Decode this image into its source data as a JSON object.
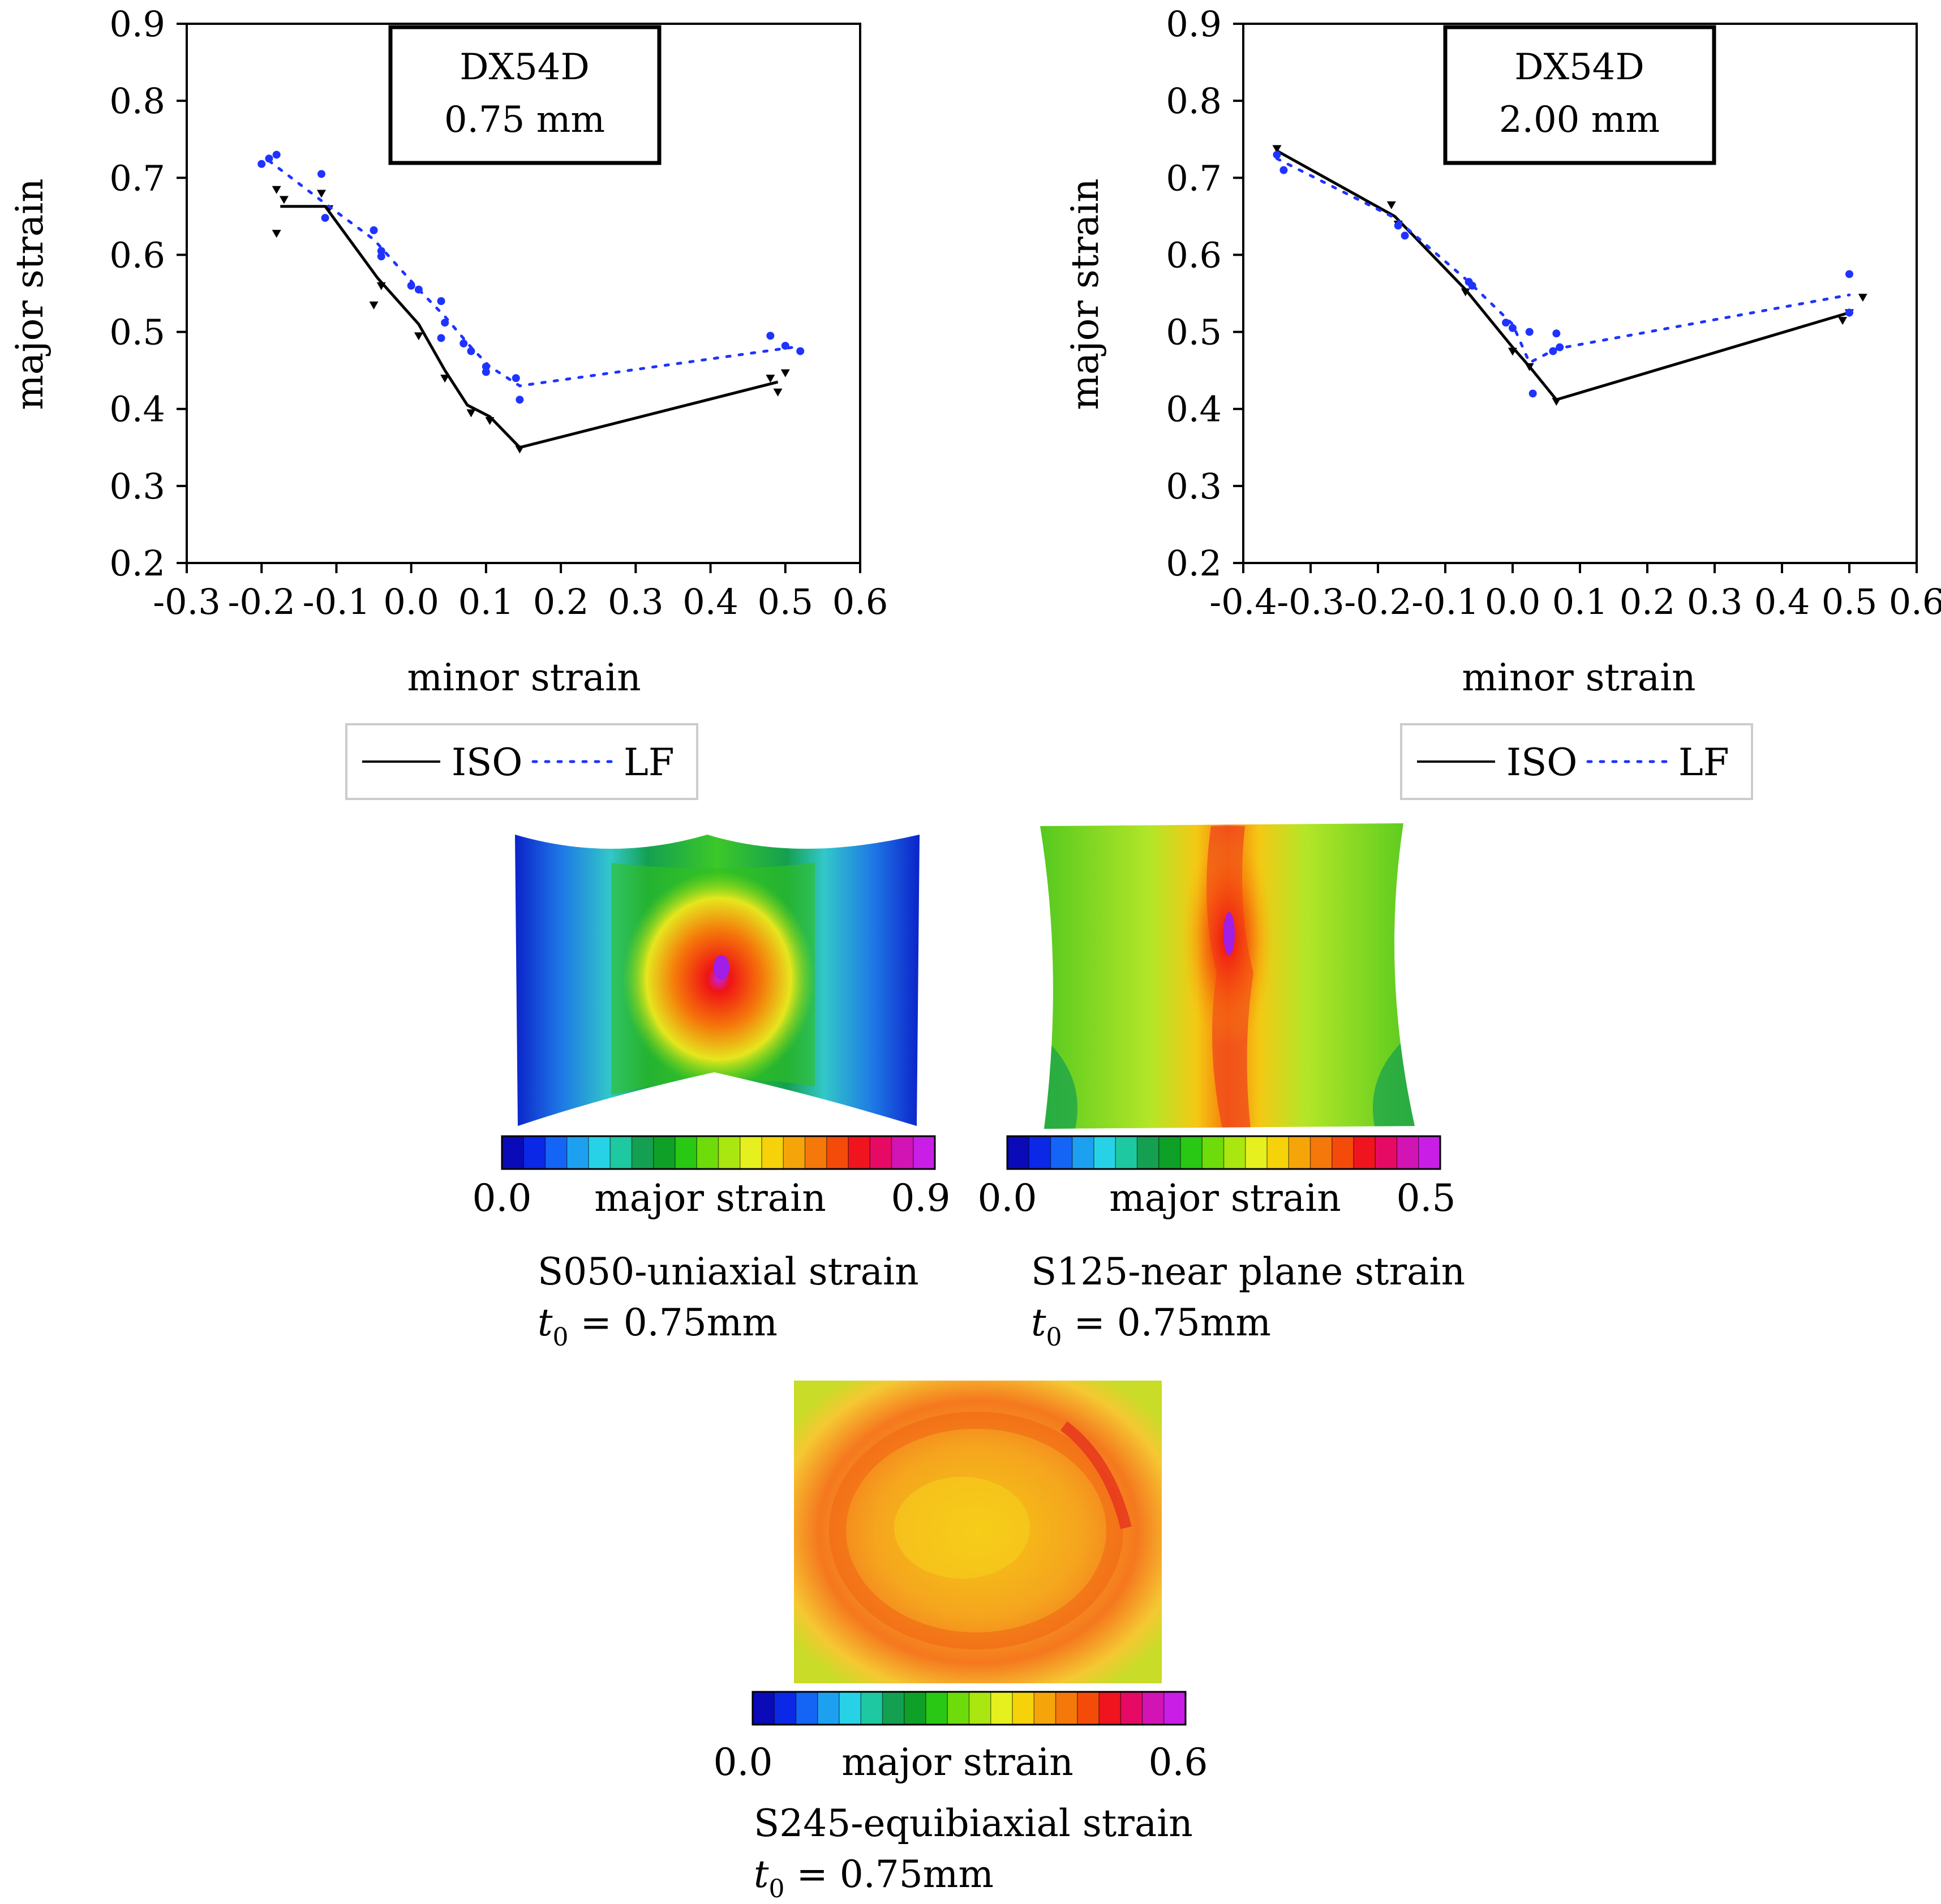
{
  "colors": {
    "iso": "#000000",
    "lf": "#1f33ff",
    "axis": "#000000"
  },
  "chart_data": [
    {
      "type": "line",
      "title": "DX54D",
      "subtitle": "0.75 mm",
      "xlabel": "minor strain",
      "ylabel": "major strain",
      "xlim": [
        -0.3,
        0.6
      ],
      "ylim": [
        0.2,
        0.9
      ],
      "xticks": [
        -0.3,
        -0.2,
        -0.1,
        0.0,
        0.1,
        0.2,
        0.3,
        0.4,
        0.5,
        0.6
      ],
      "xtick_labels": [
        "-0.3",
        "-0.2",
        "-0.1",
        "0.0",
        "0.1",
        "0.2",
        "0.3",
        "0.4",
        "0.5",
        "0.6"
      ],
      "yticks": [
        0.2,
        0.3,
        0.4,
        0.5,
        0.6,
        0.7,
        0.8,
        0.9
      ],
      "ytick_labels": [
        "0.2",
        "0.3",
        "0.4",
        "0.5",
        "0.6",
        "0.7",
        "0.8",
        "0.9"
      ],
      "legend": [
        "ISO",
        "LF"
      ],
      "series": [
        {
          "name": "ISO",
          "style": "solid",
          "line": [
            [
              -0.175,
              0.663
            ],
            [
              -0.115,
              0.663
            ],
            [
              -0.045,
              0.57
            ],
            [
              0.01,
              0.51
            ],
            [
              0.045,
              0.45
            ],
            [
              0.075,
              0.405
            ],
            [
              0.105,
              0.39
            ],
            [
              0.145,
              0.35
            ],
            [
              0.49,
              0.435
            ]
          ],
          "points": [
            [
              -0.18,
              0.685
            ],
            [
              -0.18,
              0.628
            ],
            [
              -0.17,
              0.672
            ],
            [
              -0.12,
              0.68
            ],
            [
              -0.11,
              0.66
            ],
            [
              -0.05,
              0.535
            ],
            [
              -0.04,
              0.56
            ],
            [
              0.01,
              0.495
            ],
            [
              0.045,
              0.44
            ],
            [
              0.08,
              0.395
            ],
            [
              0.105,
              0.385
            ],
            [
              0.145,
              0.348
            ],
            [
              0.48,
              0.44
            ],
            [
              0.49,
              0.422
            ],
            [
              0.5,
              0.447
            ]
          ]
        },
        {
          "name": "LF",
          "style": "dotted",
          "line": [
            [
              -0.19,
              0.722
            ],
            [
              -0.11,
              0.663
            ],
            [
              -0.05,
              0.62
            ],
            [
              0.01,
              0.555
            ],
            [
              0.045,
              0.52
            ],
            [
              0.08,
              0.48
            ],
            [
              0.105,
              0.455
            ],
            [
              0.145,
              0.43
            ],
            [
              0.51,
              0.48
            ]
          ],
          "points": [
            [
              -0.2,
              0.718
            ],
            [
              -0.19,
              0.725
            ],
            [
              -0.18,
              0.73
            ],
            [
              -0.12,
              0.705
            ],
            [
              -0.115,
              0.648
            ],
            [
              -0.05,
              0.632
            ],
            [
              -0.04,
              0.598
            ],
            [
              -0.04,
              0.605
            ],
            [
              0.0,
              0.56
            ],
            [
              0.01,
              0.555
            ],
            [
              0.04,
              0.54
            ],
            [
              0.04,
              0.492
            ],
            [
              0.045,
              0.512
            ],
            [
              0.07,
              0.485
            ],
            [
              0.08,
              0.475
            ],
            [
              0.1,
              0.455
            ],
            [
              0.1,
              0.448
            ],
            [
              0.14,
              0.44
            ],
            [
              0.145,
              0.412
            ],
            [
              0.48,
              0.495
            ],
            [
              0.5,
              0.482
            ],
            [
              0.52,
              0.475
            ]
          ]
        }
      ]
    },
    {
      "type": "line",
      "title": "DX54D",
      "subtitle": "2.00 mm",
      "xlabel": "minor strain",
      "ylabel": "major strain",
      "xlim": [
        -0.4,
        0.6
      ],
      "ylim": [
        0.2,
        0.9
      ],
      "xticks": [
        -0.4,
        -0.3,
        -0.2,
        -0.1,
        0.0,
        0.1,
        0.2,
        0.3,
        0.4,
        0.5,
        0.6
      ],
      "xtick_labels": [
        "-0.4",
        "-0.3",
        "-0.2",
        "-0.1",
        "0.0",
        "0.1",
        "0.2",
        "0.3",
        "0.4",
        "0.5",
        "0.6"
      ],
      "yticks": [
        0.2,
        0.3,
        0.4,
        0.5,
        0.6,
        0.7,
        0.8,
        0.9
      ],
      "ytick_labels": [
        "0.2",
        "0.3",
        "0.4",
        "0.5",
        "0.6",
        "0.7",
        "0.8",
        "0.9"
      ],
      "legend": [
        "ISO",
        "LF"
      ],
      "series": [
        {
          "name": "ISO",
          "style": "solid",
          "line": [
            [
              -0.35,
              0.735
            ],
            [
              -0.175,
              0.65
            ],
            [
              -0.07,
              0.555
            ],
            [
              0.0,
              0.48
            ],
            [
              0.025,
              0.455
            ],
            [
              0.065,
              0.412
            ],
            [
              0.5,
              0.525
            ]
          ],
          "points": [
            [
              -0.35,
              0.738
            ],
            [
              -0.18,
              0.665
            ],
            [
              -0.17,
              0.64
            ],
            [
              -0.07,
              0.552
            ],
            [
              0.0,
              0.475
            ],
            [
              0.025,
              0.455
            ],
            [
              0.065,
              0.41
            ],
            [
              0.49,
              0.515
            ],
            [
              0.5,
              0.525
            ],
            [
              0.52,
              0.545
            ]
          ]
        },
        {
          "name": "LF",
          "style": "dotted",
          "line": [
            [
              -0.35,
              0.725
            ],
            [
              -0.175,
              0.648
            ],
            [
              -0.065,
              0.565
            ],
            [
              0.0,
              0.51
            ],
            [
              0.025,
              0.46
            ],
            [
              0.065,
              0.478
            ],
            [
              0.5,
              0.548
            ]
          ],
          "points": [
            [
              -0.35,
              0.73
            ],
            [
              -0.34,
              0.71
            ],
            [
              -0.17,
              0.638
            ],
            [
              -0.16,
              0.625
            ],
            [
              -0.065,
              0.565
            ],
            [
              -0.06,
              0.56
            ],
            [
              -0.01,
              0.512
            ],
            [
              0.0,
              0.505
            ],
            [
              0.025,
              0.5
            ],
            [
              0.03,
              0.42
            ],
            [
              0.06,
              0.475
            ],
            [
              0.065,
              0.498
            ],
            [
              0.07,
              0.48
            ],
            [
              0.5,
              0.575
            ],
            [
              0.5,
              0.525
            ]
          ]
        }
      ]
    }
  ],
  "strain_maps": [
    {
      "name": "S050",
      "colorbar_min": "0.0",
      "colorbar_label": "major strain",
      "colorbar_max": "0.9",
      "caption": "S050-uniaxial strain",
      "thickness_var": "t",
      "thickness_sub": "0",
      "thickness_value": " = 0.75mm"
    },
    {
      "name": "S125",
      "colorbar_min": "0.0",
      "colorbar_label": "major strain",
      "colorbar_max": "0.5",
      "caption": "S125-near plane strain",
      "thickness_var": "t",
      "thickness_sub": "0",
      "thickness_value": " = 0.75mm"
    },
    {
      "name": "S245",
      "colorbar_min": "0.0",
      "colorbar_label": "major strain",
      "colorbar_max": "0.6",
      "caption": "S245-equibiaxial strain",
      "thickness_var": "t",
      "thickness_sub": "0",
      "thickness_value": " = 0.75mm"
    }
  ],
  "colorbar_colors": [
    "#0a0ab8",
    "#0a28e6",
    "#1464f5",
    "#1ea0f0",
    "#28d2e6",
    "#1ec8a0",
    "#14a050",
    "#0fa028",
    "#28c814",
    "#6edc0a",
    "#aae60f",
    "#e6f01e",
    "#f5d20a",
    "#f5a50a",
    "#f5780a",
    "#f54b0a",
    "#f0141e",
    "#e60a64",
    "#d214b4",
    "#c81ee6"
  ]
}
